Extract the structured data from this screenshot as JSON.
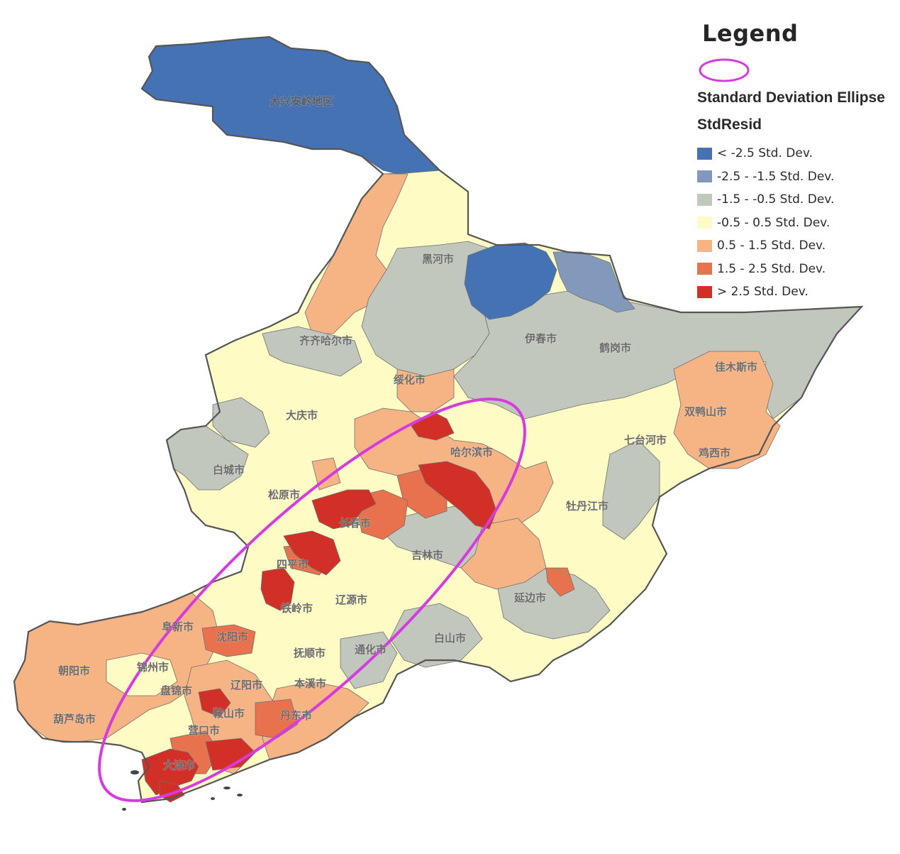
{
  "legend": {
    "title": "Legend",
    "ellipse_label": "Standard Deviation Ellipse",
    "ellipse_color": "#d63be0",
    "field_label": "StdResid",
    "classes": [
      {
        "label": "< -2.5 Std. Dev.",
        "color": "#4472b3"
      },
      {
        "label": "-2.5 - -1.5 Std. Dev.",
        "color": "#8399bb"
      },
      {
        "label": "-1.5 - -0.5 Std. Dev.",
        "color": "#c1c7bd"
      },
      {
        "label": "-0.5 - 0.5 Std. Dev.",
        "color": "#fefbc5"
      },
      {
        "label": "0.5 - 1.5 Std. Dev.",
        "color": "#f6b384"
      },
      {
        "label": "1.5 - 2.5 Std. Dev.",
        "color": "#e9724e"
      },
      {
        "label": "> 2.5 Std. Dev.",
        "color": "#d22f27"
      }
    ]
  },
  "cities": {
    "daxinganling": "大兴安岭地区",
    "heihe": "黑河市",
    "qiqihar": "齐齐哈尔市",
    "yichun": "伊春市",
    "hegang": "鹤岗市",
    "jiamusi": "佳木斯市",
    "suihua": "绥化市",
    "daqing": "大庆市",
    "shuangyashan": "双鸭山市",
    "qitaihe": "七台河市",
    "harbin": "哈尔滨市",
    "jixi": "鸡西市",
    "baicheng": "白城市",
    "songyuan": "松原市",
    "mudanjiang": "牡丹江市",
    "changchun": "长春市",
    "jilin": "吉林市",
    "siping": "四平市",
    "yanbian": "延边市",
    "tieling": "铁岭市",
    "liaoyuan": "辽源市",
    "fuxin": "阜新市",
    "shenyang": "沈阳市",
    "baishan": "白山市",
    "fushun": "抚顺市",
    "tonghua": "通化市",
    "chaoyang": "朝阳市",
    "jinzhou": "锦州市",
    "liaoyang": "辽阳市",
    "panjin": "盘锦市",
    "benxi": "本溪市",
    "anshan": "鞍山市",
    "huludao": "葫芦岛市",
    "dandong": "丹东市",
    "yingkou": "营口市",
    "dalian": "大连市"
  }
}
